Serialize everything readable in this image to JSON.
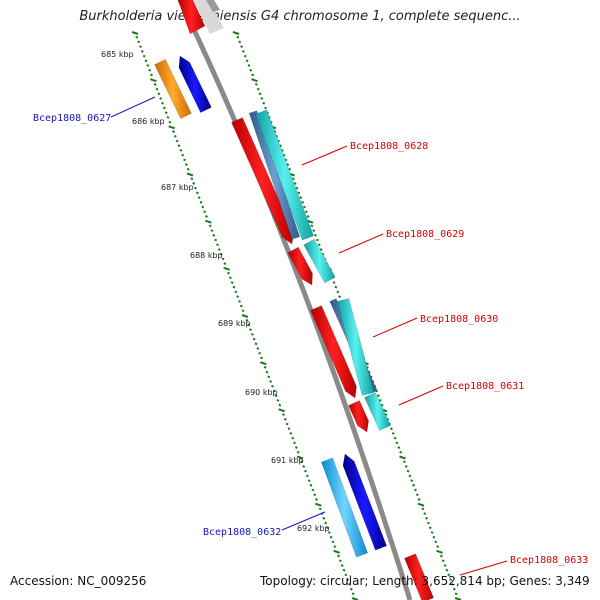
{
  "header": {
    "title": "Burkholderia vietnamiensis G4 chromosome 1, complete sequenc..."
  },
  "footer": {
    "accession": "Accession: NC_009256",
    "summary": "Topology: circular; Length: 3,652,814 bp; Genes: 3,349"
  },
  "ticks": [
    "685 kbp",
    "686 kbp",
    "687 kbp",
    "688 kbp",
    "689 kbp",
    "690 kbp",
    "691 kbp",
    "692 kbp"
  ],
  "genes": [
    {
      "label": "Bcep1808_0627",
      "strand": "reverse",
      "color": "#1515c0"
    },
    {
      "label": "Bcep1808_0628",
      "strand": "forward",
      "color": "#d40000"
    },
    {
      "label": "Bcep1808_0629",
      "strand": "forward",
      "color": "#d40000"
    },
    {
      "label": "Bcep1808_0630",
      "strand": "forward",
      "color": "#d40000"
    },
    {
      "label": "Bcep1808_0631",
      "strand": "forward",
      "color": "#d40000"
    },
    {
      "label": "Bcep1808_0632",
      "strand": "reverse",
      "color": "#1515c0"
    },
    {
      "label": "Bcep1808_0633",
      "strand": "forward",
      "color": "#d40000"
    }
  ],
  "colors": {
    "backbone": "#8a8a8a",
    "forward_cds": "#ff0000",
    "reverse_cds": "#0000ee",
    "teal_feature": "#1fcfcf",
    "steel_feature": "#4a7ab0",
    "orange_feature": "#ff8c00",
    "sky_feature": "#1eb4f0",
    "tick_mark": "#1a7a1a"
  }
}
